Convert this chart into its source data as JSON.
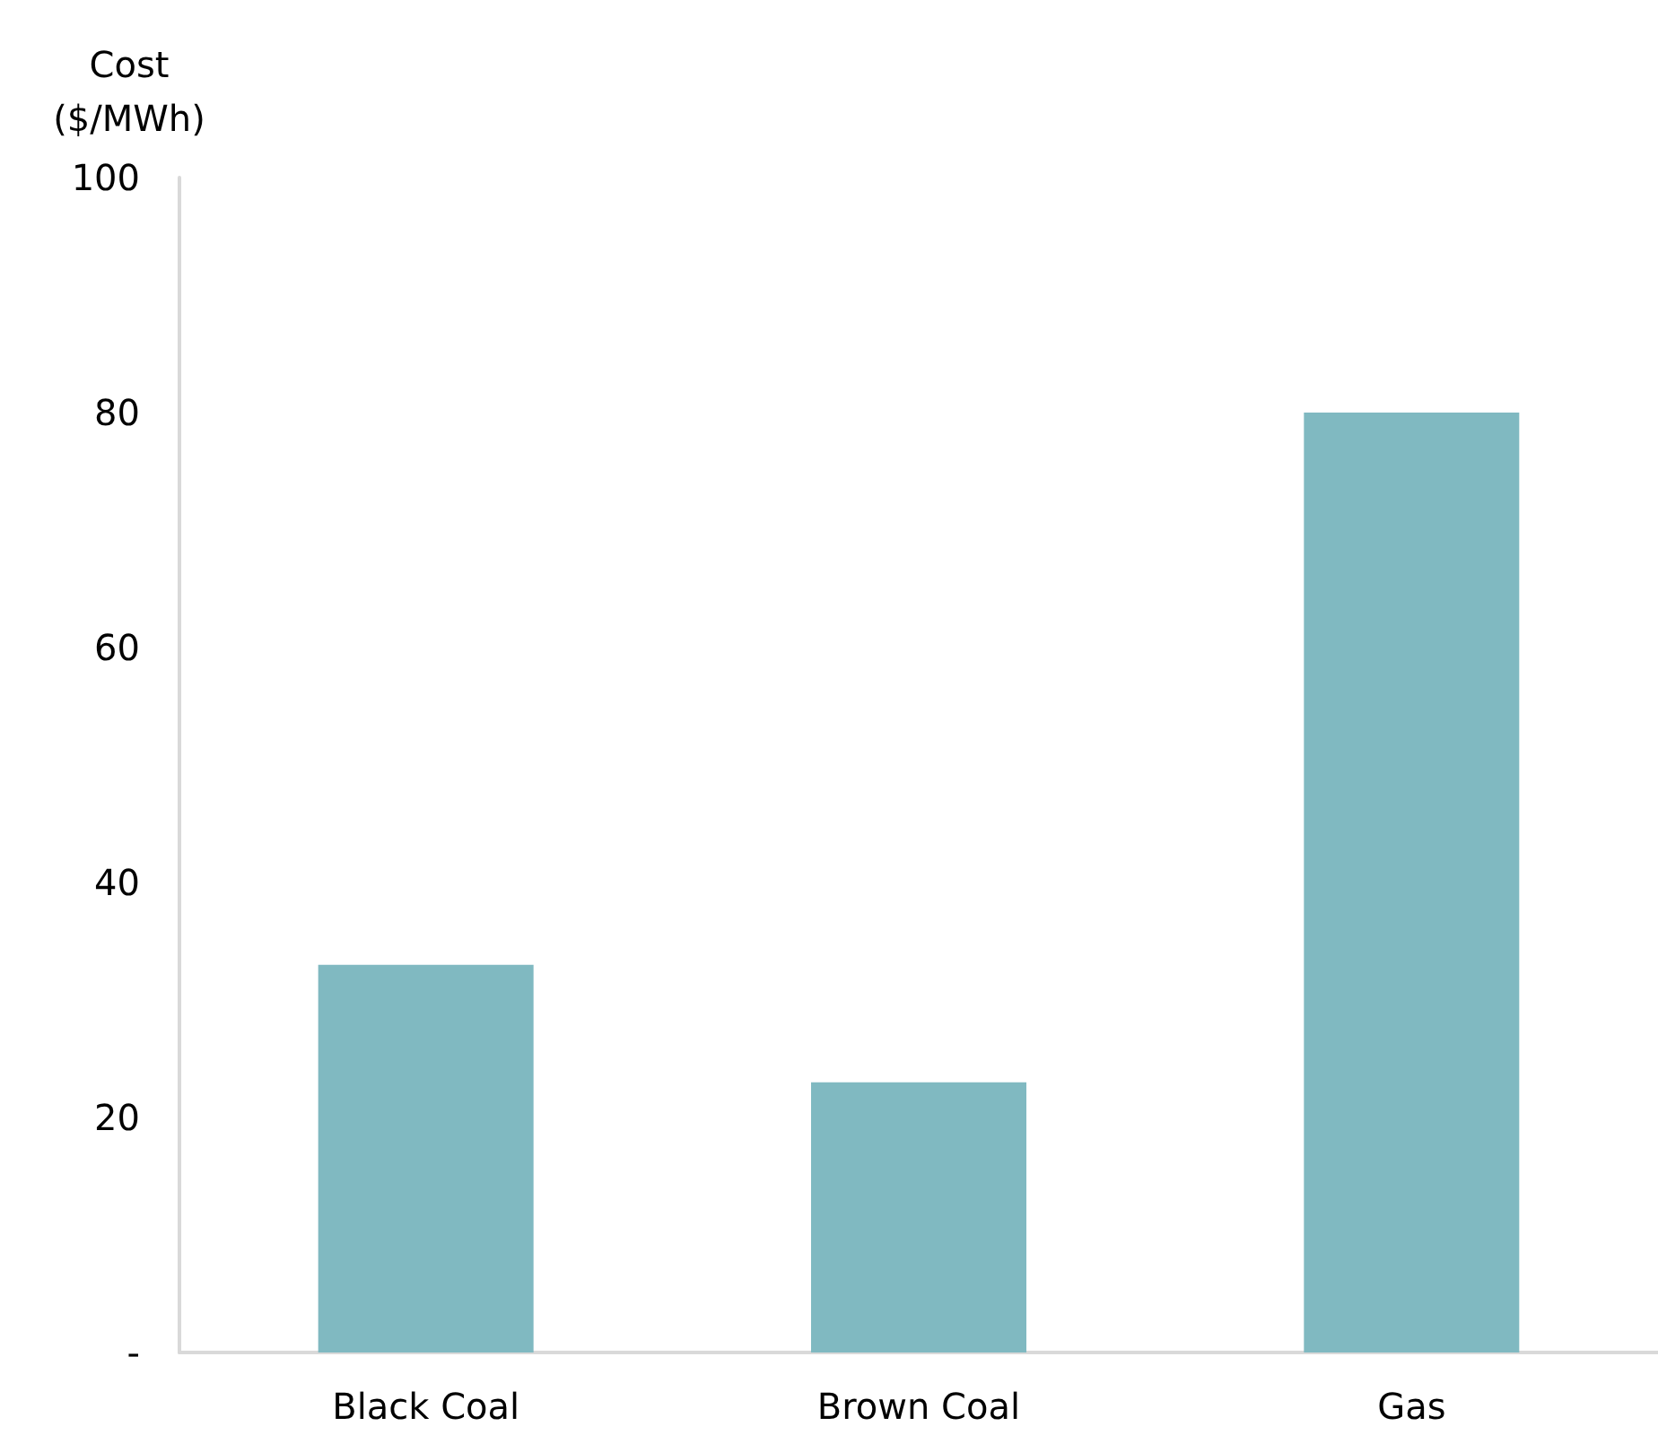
{
  "chart_data": {
    "type": "bar",
    "ylabel": "Cost ($/MWh)",
    "categories": [
      "Black Coal",
      "Brown Coal",
      "Gas"
    ],
    "values": [
      33,
      23,
      80
    ],
    "color": "#80b9c1",
    "ylim": [
      0,
      100
    ],
    "yticks": [
      {
        "value": 0,
        "label": "-"
      },
      20,
      40,
      60,
      80,
      100
    ],
    "grid": false
  }
}
